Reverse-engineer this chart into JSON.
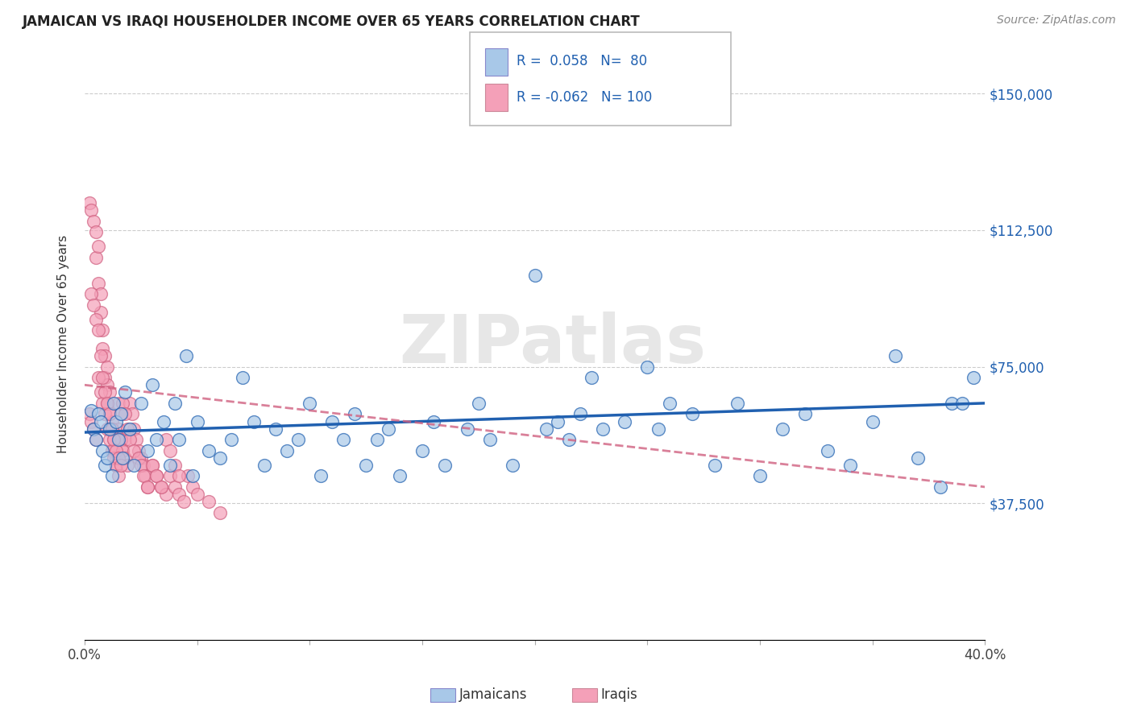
{
  "title": "JAMAICAN VS IRAQI HOUSEHOLDER INCOME OVER 65 YEARS CORRELATION CHART",
  "source": "Source: ZipAtlas.com",
  "ylabel": "Householder Income Over 65 years",
  "xlim": [
    0.0,
    0.4
  ],
  "ylim": [
    0,
    162500
  ],
  "xticks": [
    0.0,
    0.05,
    0.1,
    0.15,
    0.2,
    0.25,
    0.3,
    0.35,
    0.4
  ],
  "xtick_labels": [
    "0.0%",
    "",
    "",
    "",
    "",
    "",
    "",
    "",
    "40.0%"
  ],
  "ytick_labels": [
    "$37,500",
    "$75,000",
    "$112,500",
    "$150,000"
  ],
  "yticks": [
    37500,
    75000,
    112500,
    150000
  ],
  "watermark": "ZIPatlas",
  "legend_blue_r": "0.058",
  "legend_blue_n": "80",
  "legend_pink_r": "-0.062",
  "legend_pink_n": "100",
  "blue_color": "#a8c8e8",
  "pink_color": "#f4a0b8",
  "line_blue": "#2060b0",
  "line_pink": "#d06080",
  "jamaicans_x": [
    0.003,
    0.004,
    0.005,
    0.006,
    0.007,
    0.008,
    0.009,
    0.01,
    0.011,
    0.012,
    0.013,
    0.014,
    0.015,
    0.016,
    0.017,
    0.018,
    0.02,
    0.022,
    0.025,
    0.028,
    0.03,
    0.032,
    0.035,
    0.038,
    0.04,
    0.042,
    0.045,
    0.048,
    0.05,
    0.055,
    0.06,
    0.065,
    0.07,
    0.075,
    0.08,
    0.085,
    0.09,
    0.095,
    0.1,
    0.105,
    0.11,
    0.115,
    0.12,
    0.125,
    0.13,
    0.135,
    0.14,
    0.15,
    0.155,
    0.16,
    0.17,
    0.175,
    0.18,
    0.19,
    0.2,
    0.205,
    0.21,
    0.215,
    0.22,
    0.225,
    0.23,
    0.24,
    0.25,
    0.255,
    0.26,
    0.27,
    0.28,
    0.29,
    0.3,
    0.31,
    0.32,
    0.33,
    0.34,
    0.35,
    0.36,
    0.37,
    0.38,
    0.385,
    0.39,
    0.395
  ],
  "jamaicans_y": [
    63000,
    58000,
    55000,
    62000,
    60000,
    52000,
    48000,
    50000,
    58000,
    45000,
    65000,
    60000,
    55000,
    62000,
    50000,
    68000,
    58000,
    48000,
    65000,
    52000,
    70000,
    55000,
    60000,
    48000,
    65000,
    55000,
    78000,
    45000,
    60000,
    52000,
    50000,
    55000,
    72000,
    60000,
    48000,
    58000,
    52000,
    55000,
    65000,
    45000,
    60000,
    55000,
    62000,
    48000,
    55000,
    58000,
    45000,
    52000,
    60000,
    48000,
    58000,
    65000,
    55000,
    48000,
    100000,
    58000,
    60000,
    55000,
    62000,
    72000,
    58000,
    60000,
    75000,
    58000,
    65000,
    62000,
    48000,
    65000,
    45000,
    58000,
    62000,
    52000,
    48000,
    60000,
    78000,
    50000,
    42000,
    65000,
    65000,
    72000
  ],
  "iraqis_x": [
    0.002,
    0.003,
    0.004,
    0.005,
    0.005,
    0.006,
    0.006,
    0.007,
    0.007,
    0.008,
    0.008,
    0.009,
    0.009,
    0.01,
    0.01,
    0.01,
    0.011,
    0.011,
    0.012,
    0.012,
    0.013,
    0.013,
    0.014,
    0.014,
    0.015,
    0.015,
    0.016,
    0.016,
    0.017,
    0.018,
    0.002,
    0.003,
    0.004,
    0.005,
    0.006,
    0.007,
    0.008,
    0.009,
    0.01,
    0.011,
    0.012,
    0.013,
    0.014,
    0.015,
    0.016,
    0.017,
    0.018,
    0.019,
    0.02,
    0.021,
    0.022,
    0.023,
    0.024,
    0.025,
    0.026,
    0.027,
    0.028,
    0.03,
    0.032,
    0.034,
    0.036,
    0.038,
    0.04,
    0.042,
    0.044,
    0.046,
    0.048,
    0.05,
    0.055,
    0.06,
    0.003,
    0.004,
    0.005,
    0.006,
    0.007,
    0.008,
    0.009,
    0.01,
    0.011,
    0.012,
    0.013,
    0.014,
    0.015,
    0.016,
    0.017,
    0.018,
    0.019,
    0.02,
    0.022,
    0.024,
    0.025,
    0.026,
    0.028,
    0.03,
    0.032,
    0.034,
    0.036,
    0.038,
    0.04,
    0.042
  ],
  "iraqis_y": [
    120000,
    118000,
    115000,
    112000,
    105000,
    98000,
    108000,
    95000,
    90000,
    85000,
    80000,
    78000,
    72000,
    70000,
    65000,
    75000,
    68000,
    62000,
    60000,
    58000,
    55000,
    52000,
    50000,
    48000,
    65000,
    58000,
    55000,
    62000,
    52000,
    55000,
    62000,
    60000,
    58000,
    55000,
    72000,
    68000,
    65000,
    62000,
    58000,
    55000,
    52000,
    50000,
    48000,
    45000,
    55000,
    52000,
    50000,
    48000,
    65000,
    62000,
    58000,
    55000,
    52000,
    50000,
    48000,
    45000,
    42000,
    48000,
    45000,
    42000,
    40000,
    45000,
    42000,
    40000,
    38000,
    45000,
    42000,
    40000,
    38000,
    35000,
    95000,
    92000,
    88000,
    85000,
    78000,
    72000,
    68000,
    65000,
    62000,
    58000,
    55000,
    52000,
    50000,
    48000,
    65000,
    62000,
    58000,
    55000,
    52000,
    50000,
    48000,
    45000,
    42000,
    48000,
    45000,
    42000,
    55000,
    52000,
    48000,
    45000
  ],
  "blue_trend_x": [
    0.0,
    0.4
  ],
  "blue_trend_y": [
    57000,
    65000
  ],
  "pink_trend_x": [
    0.0,
    0.4
  ],
  "pink_trend_y": [
    70000,
    42000
  ]
}
